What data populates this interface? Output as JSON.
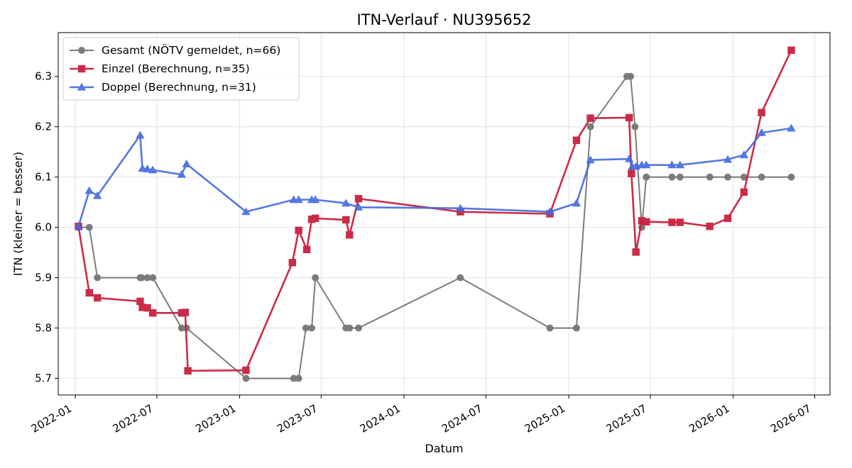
{
  "chart_data": {
    "type": "line",
    "title": "ITN-Verlauf · NU395652",
    "xlabel": "Datum",
    "ylabel": "ITN  (kleiner = besser)",
    "x_is_date": true,
    "xlim": [
      "2021-11-24",
      "2026-08-04"
    ],
    "ylim": [
      5.667,
      6.387
    ],
    "x_ticks": [
      "2022-01-01",
      "2022-07-01",
      "2023-01-01",
      "2023-07-01",
      "2024-01-01",
      "2024-07-01",
      "2025-01-01",
      "2025-07-01",
      "2026-01-01",
      "2026-07-01"
    ],
    "x_tick_labels": [
      "2022-01",
      "2022-07",
      "2023-01",
      "2023-07",
      "2024-01",
      "2024-07",
      "2025-01",
      "2025-07",
      "2026-01",
      "2026-07"
    ],
    "y_ticks": [
      5.7,
      5.8,
      5.9,
      6.0,
      6.1,
      6.2,
      6.3
    ],
    "y_tick_labels": [
      "5.7",
      "5.8",
      "5.9",
      "6.0",
      "6.1",
      "6.2",
      "6.3"
    ],
    "grid": true,
    "legend_position": "top-left",
    "series": [
      {
        "name": "Gesamt (NÖTV gemeldet, n=66)",
        "color": "#4a4a4a",
        "marker": "circle",
        "points": [
          [
            "2022-01-08",
            6.0
          ],
          [
            "2022-02-01",
            6.0
          ],
          [
            "2022-02-19",
            5.9
          ],
          [
            "2022-05-25",
            5.9
          ],
          [
            "2022-05-28",
            5.9
          ],
          [
            "2022-06-10",
            5.9
          ],
          [
            "2022-06-22",
            5.9
          ],
          [
            "2022-08-25",
            5.8
          ],
          [
            "2022-09-05",
            5.8
          ],
          [
            "2023-01-15",
            5.7
          ],
          [
            "2023-05-01",
            5.7
          ],
          [
            "2023-05-12",
            5.7
          ],
          [
            "2023-05-28",
            5.8
          ],
          [
            "2023-06-10",
            5.8
          ],
          [
            "2023-06-18",
            5.9
          ],
          [
            "2023-08-25",
            5.8
          ],
          [
            "2023-09-02",
            5.8
          ],
          [
            "2023-09-22",
            5.8
          ],
          [
            "2024-05-05",
            5.9
          ],
          [
            "2024-11-20",
            5.8
          ],
          [
            "2025-01-18",
            5.8
          ],
          [
            "2025-02-18",
            6.2
          ],
          [
            "2025-05-10",
            6.3
          ],
          [
            "2025-05-18",
            6.3
          ],
          [
            "2025-05-28",
            6.2
          ],
          [
            "2025-06-12",
            6.0
          ],
          [
            "2025-06-22",
            6.1
          ],
          [
            "2025-08-18",
            6.1
          ],
          [
            "2025-09-05",
            6.1
          ],
          [
            "2025-11-10",
            6.1
          ],
          [
            "2025-12-20",
            6.1
          ],
          [
            "2026-01-25",
            6.1
          ],
          [
            "2026-03-05",
            6.1
          ],
          [
            "2026-05-10",
            6.1
          ]
        ]
      },
      {
        "name": "Einzel (Berechnung, n=35)",
        "color": "#c8213f",
        "marker": "square",
        "points": [
          [
            "2022-01-08",
            6.002
          ],
          [
            "2022-02-01",
            5.87
          ],
          [
            "2022-02-19",
            5.86
          ],
          [
            "2022-05-25",
            5.853
          ],
          [
            "2022-05-30",
            5.841
          ],
          [
            "2022-06-10",
            5.84
          ],
          [
            "2022-06-22",
            5.83
          ],
          [
            "2022-08-25",
            5.83
          ],
          [
            "2022-09-02",
            5.831
          ],
          [
            "2022-09-08",
            5.715
          ],
          [
            "2023-01-15",
            5.716
          ],
          [
            "2023-04-28",
            5.93
          ],
          [
            "2023-05-12",
            5.994
          ],
          [
            "2023-05-30",
            5.956
          ],
          [
            "2023-06-10",
            6.016
          ],
          [
            "2023-06-18",
            6.018
          ],
          [
            "2023-08-25",
            6.015
          ],
          [
            "2023-09-02",
            5.985
          ],
          [
            "2023-09-22",
            6.057
          ],
          [
            "2024-05-05",
            6.031
          ],
          [
            "2024-11-20",
            6.027
          ],
          [
            "2025-01-18",
            6.173
          ],
          [
            "2025-02-18",
            6.217
          ],
          [
            "2025-05-15",
            6.218
          ],
          [
            "2025-05-20",
            6.107
          ],
          [
            "2025-05-30",
            5.951
          ],
          [
            "2025-06-12",
            6.013
          ],
          [
            "2025-06-22",
            6.011
          ],
          [
            "2025-08-18",
            6.01
          ],
          [
            "2025-09-05",
            6.01
          ],
          [
            "2025-11-10",
            6.002
          ],
          [
            "2025-12-20",
            6.018
          ],
          [
            "2026-01-25",
            6.07
          ],
          [
            "2026-03-05",
            6.228
          ],
          [
            "2026-05-10",
            6.352
          ]
        ]
      },
      {
        "name": "Doppel (Berechnung, n=31)",
        "color": "#4169e1",
        "marker": "triangle",
        "points": [
          [
            "2022-01-08",
            6.002
          ],
          [
            "2022-02-01",
            6.073
          ],
          [
            "2022-02-19",
            6.063
          ],
          [
            "2022-05-25",
            6.183
          ],
          [
            "2022-05-30",
            6.117
          ],
          [
            "2022-06-10",
            6.116
          ],
          [
            "2022-06-22",
            6.114
          ],
          [
            "2022-08-25",
            6.105
          ],
          [
            "2022-09-05",
            6.126
          ],
          [
            "2023-01-15",
            6.031
          ],
          [
            "2023-05-01",
            6.055
          ],
          [
            "2023-05-12",
            6.055
          ],
          [
            "2023-06-10",
            6.055
          ],
          [
            "2023-06-18",
            6.055
          ],
          [
            "2023-08-25",
            6.048
          ],
          [
            "2023-09-22",
            6.04
          ],
          [
            "2024-05-05",
            6.038
          ],
          [
            "2024-11-20",
            6.031
          ],
          [
            "2025-01-18",
            6.048
          ],
          [
            "2025-02-18",
            6.134
          ],
          [
            "2025-05-15",
            6.136
          ],
          [
            "2025-05-22",
            6.121
          ],
          [
            "2025-05-30",
            6.121
          ],
          [
            "2025-06-12",
            6.124
          ],
          [
            "2025-06-22",
            6.124
          ],
          [
            "2025-08-18",
            6.124
          ],
          [
            "2025-09-05",
            6.124
          ],
          [
            "2025-12-20",
            6.135
          ],
          [
            "2026-01-25",
            6.144
          ],
          [
            "2026-03-05",
            6.188
          ],
          [
            "2026-05-10",
            6.197
          ]
        ]
      }
    ]
  }
}
